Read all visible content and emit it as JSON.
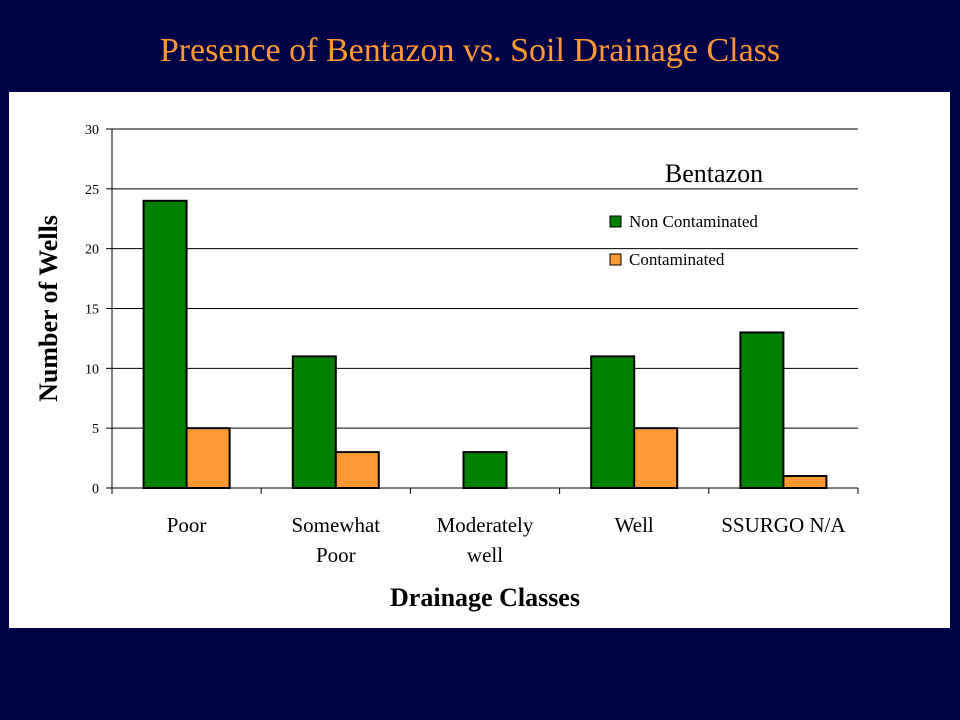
{
  "title": "Presence of Bentazon vs. Soil Drainage Class",
  "chart_data": {
    "type": "bar",
    "categories": [
      "Poor",
      "Somewhat Poor",
      "Moderately well",
      "Well",
      "SSURGO N/A"
    ],
    "category_lines": [
      [
        "Poor"
      ],
      [
        "Somewhat",
        "Poor"
      ],
      [
        "Moderately",
        "well"
      ],
      [
        "Well"
      ],
      [
        "SSURGO N/A"
      ]
    ],
    "series": [
      {
        "name": "Non Contaminated",
        "color": "#008000",
        "values": [
          24,
          11,
          3,
          11,
          13
        ]
      },
      {
        "name": "Contaminated",
        "color": "#ff9933",
        "values": [
          5,
          3,
          null,
          5,
          1
        ]
      }
    ],
    "ylim": [
      0,
      30
    ],
    "yticks": [
      0,
      5,
      10,
      15,
      20,
      25,
      30
    ],
    "ylabel": "Number of Wells",
    "xlabel": "Drainage Classes",
    "legend_title": "Bentazon",
    "legend_position": "top-right",
    "grid": true
  }
}
